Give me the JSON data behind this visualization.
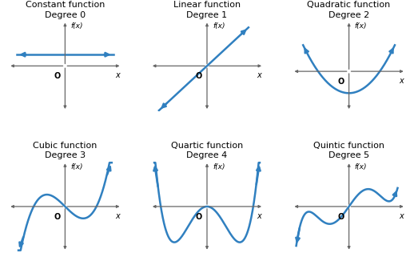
{
  "background_color": "#ffffff",
  "curve_color": "#3080c0",
  "axis_color": "#666666",
  "text_color": "#000000",
  "titles": [
    [
      "Constant function",
      "Degree 0"
    ],
    [
      "Linear function",
      "Degree 1"
    ],
    [
      "Quadratic function",
      "Degree 2"
    ],
    [
      "Cubic function",
      "Degree 3"
    ],
    [
      "Quartic function",
      "Degree 4"
    ],
    [
      "Quintic function",
      "Degree 5"
    ]
  ],
  "title_fontsize": 8.0,
  "label_fontsize": 7.0,
  "axis_label": "f(x)"
}
